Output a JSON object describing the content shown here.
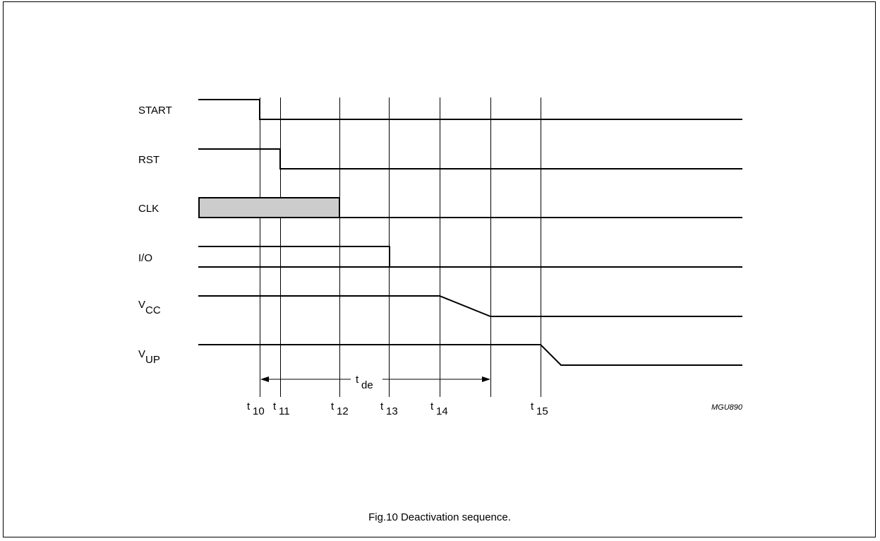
{
  "signals": [
    {
      "id": "start",
      "label": "START",
      "sub": ""
    },
    {
      "id": "rst",
      "label": "RST",
      "sub": ""
    },
    {
      "id": "clk",
      "label": "CLK",
      "sub": ""
    },
    {
      "id": "io",
      "label": "I/O",
      "sub": ""
    },
    {
      "id": "vcc",
      "label": "V",
      "sub": "CC"
    },
    {
      "id": "vup",
      "label": "V",
      "sub": "UP"
    }
  ],
  "time_markers": [
    {
      "id": "t10",
      "base": "t",
      "sub": "10"
    },
    {
      "id": "t11",
      "base": "t",
      "sub": "11"
    },
    {
      "id": "t12",
      "base": "t",
      "sub": "12"
    },
    {
      "id": "t13",
      "base": "t",
      "sub": "13"
    },
    {
      "id": "t14",
      "base": "t",
      "sub": "14"
    },
    {
      "id": "t15",
      "base": "t",
      "sub": "15"
    }
  ],
  "duration": {
    "base": "t",
    "sub": "de",
    "from": "t10",
    "to": "vcc-fall-end"
  },
  "figure_code": "MGU890",
  "caption": "Fig.10  Deactivation sequence.",
  "colors": {
    "line": "#000000",
    "clk_fill": "#cccccc",
    "border": "#000000"
  }
}
